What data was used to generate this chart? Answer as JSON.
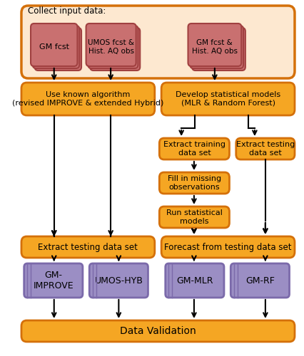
{
  "bg_color": "#ffffff",
  "orange_fill": "#f5a623",
  "orange_light_fill": "#fde8d0",
  "orange_border": "#d4700a",
  "purple_fill": "#9b8ec4",
  "purple_border": "#7b6aaa",
  "card_fill": "#c97070",
  "card_border": "#a04040",
  "card_bg": "#f5c5c5",
  "text_color": "#000000",
  "collect_label": "Collect input data:",
  "box1_text": "Use known algorithm\n(revised IMPROVE & extended Hybrid)",
  "box2_text": "Develop statistical models\n(MLR & Random Forest)",
  "box3_text": "Extract training\ndata set",
  "box4_text": "Extract testing\ndata set",
  "box5_text": "Fill in missing\nobservations",
  "box6_text": "Run statistical\nmodels",
  "box7_text": "Extract testing data set",
  "box8_text": "Forecast from testing data set",
  "box9_text": "GM-\nIMPROVE",
  "box10_text": "UMOS-HYB",
  "box11_text": "GM-MLR",
  "box12_text": "GM-RF",
  "box13_text": "Data Validation",
  "card1_text": "GM fcst",
  "card2_text": "UMOS fcst &\nHist. AQ obs",
  "card3_text": "GM fcst &\nHist. AQ obs"
}
